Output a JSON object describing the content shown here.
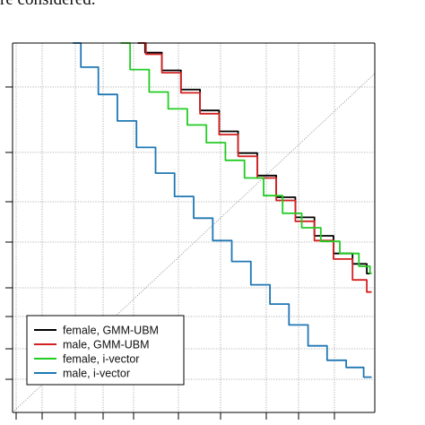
{
  "caption": "re considered.",
  "chart_data": {
    "type": "line",
    "title": "",
    "xlabel": "",
    "ylabel": "",
    "scale": "normal-deviate (DET)",
    "xlim": [
      -3.0,
      2.7
    ],
    "ylim": [
      -2.0,
      2.6
    ],
    "grid": true,
    "diagonal_reference": true,
    "legend_position": "bottom-left",
    "series": [
      {
        "name": "female, GMM-UBM",
        "color": "#000000",
        "x": [
          -1.03,
          -0.8,
          -0.5,
          -0.2,
          0.1,
          0.4,
          0.7,
          1.0,
          1.3,
          1.6,
          1.9,
          2.2,
          2.5,
          2.65
        ],
        "y": [
          2.6,
          2.48,
          2.26,
          2.02,
          1.76,
          1.5,
          1.23,
          0.95,
          0.68,
          0.43,
          0.2,
          -0.02,
          -0.15,
          -0.27
        ]
      },
      {
        "name": "male, GMM-UBM",
        "color": "#d42020",
        "x": [
          -1.0,
          -0.8,
          -0.5,
          -0.2,
          0.1,
          0.4,
          0.7,
          1.0,
          1.3,
          1.6,
          1.9,
          2.2,
          2.5,
          2.65
        ],
        "y": [
          2.6,
          2.46,
          2.23,
          1.98,
          1.72,
          1.46,
          1.19,
          0.92,
          0.64,
          0.38,
          0.14,
          -0.09,
          -0.35,
          -0.5
        ]
      },
      {
        "name": "female, i-vector",
        "color": "#22cc22",
        "x": [
          -1.3,
          -1.0,
          -0.7,
          -0.4,
          -0.1,
          0.2,
          0.5,
          0.8,
          1.1,
          1.4,
          1.7,
          2.0,
          2.3,
          2.6,
          2.65
        ],
        "y": [
          2.6,
          2.27,
          1.99,
          1.78,
          1.58,
          1.36,
          1.14,
          0.92,
          0.7,
          0.48,
          0.3,
          0.13,
          -0.02,
          -0.18,
          -0.27
        ]
      },
      {
        "name": "male, i-vector",
        "color": "#1f77b4",
        "x": [
          -2.05,
          -1.8,
          -1.5,
          -1.2,
          -0.9,
          -0.6,
          -0.3,
          0.0,
          0.3,
          0.6,
          0.9,
          1.2,
          1.5,
          1.8,
          2.1,
          2.4,
          2.65
        ],
        "y": [
          2.6,
          2.3,
          1.96,
          1.63,
          1.3,
          0.98,
          0.69,
          0.42,
          0.14,
          -0.12,
          -0.41,
          -0.65,
          -0.91,
          -1.17,
          -1.35,
          -1.44,
          -1.56
        ]
      }
    ]
  }
}
